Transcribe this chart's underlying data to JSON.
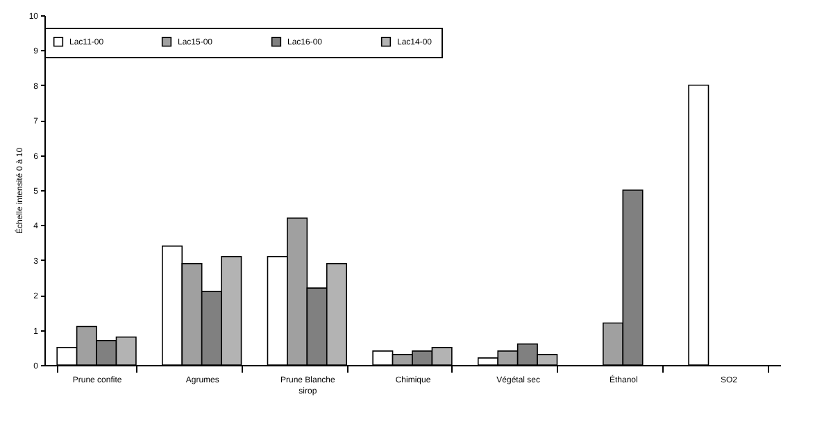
{
  "chart_data": {
    "type": "bar",
    "ylabel": "Échelle intensité 0 à 10",
    "categories": [
      "Prune confite",
      "Agrumes",
      "Prune Blanche sirop",
      "Chimique",
      "Végétal sec",
      "Éthanol",
      "SO2"
    ],
    "series": [
      {
        "name": "Lac11-00",
        "color": "#ffffff",
        "values": [
          0.5,
          3.4,
          3.1,
          0.4,
          0.2,
          null,
          8.0
        ]
      },
      {
        "name": "Lac15-00",
        "color": "#a0a0a0",
        "values": [
          1.1,
          2.9,
          4.2,
          0.3,
          0.4,
          1.2,
          null
        ]
      },
      {
        "name": "Lac16-00",
        "color": "#808080",
        "values": [
          0.7,
          2.1,
          2.2,
          0.4,
          0.6,
          5.0,
          null
        ]
      },
      {
        "name": "Lac14-00",
        "color": "#b3b3b3",
        "values": [
          0.8,
          3.1,
          2.9,
          0.5,
          0.3,
          null,
          null
        ]
      }
    ],
    "ylim": [
      0,
      10
    ],
    "yticks": [
      0,
      1,
      2,
      3,
      4,
      5,
      6,
      7,
      8,
      9,
      10
    ],
    "grid": false,
    "legend": "top"
  }
}
